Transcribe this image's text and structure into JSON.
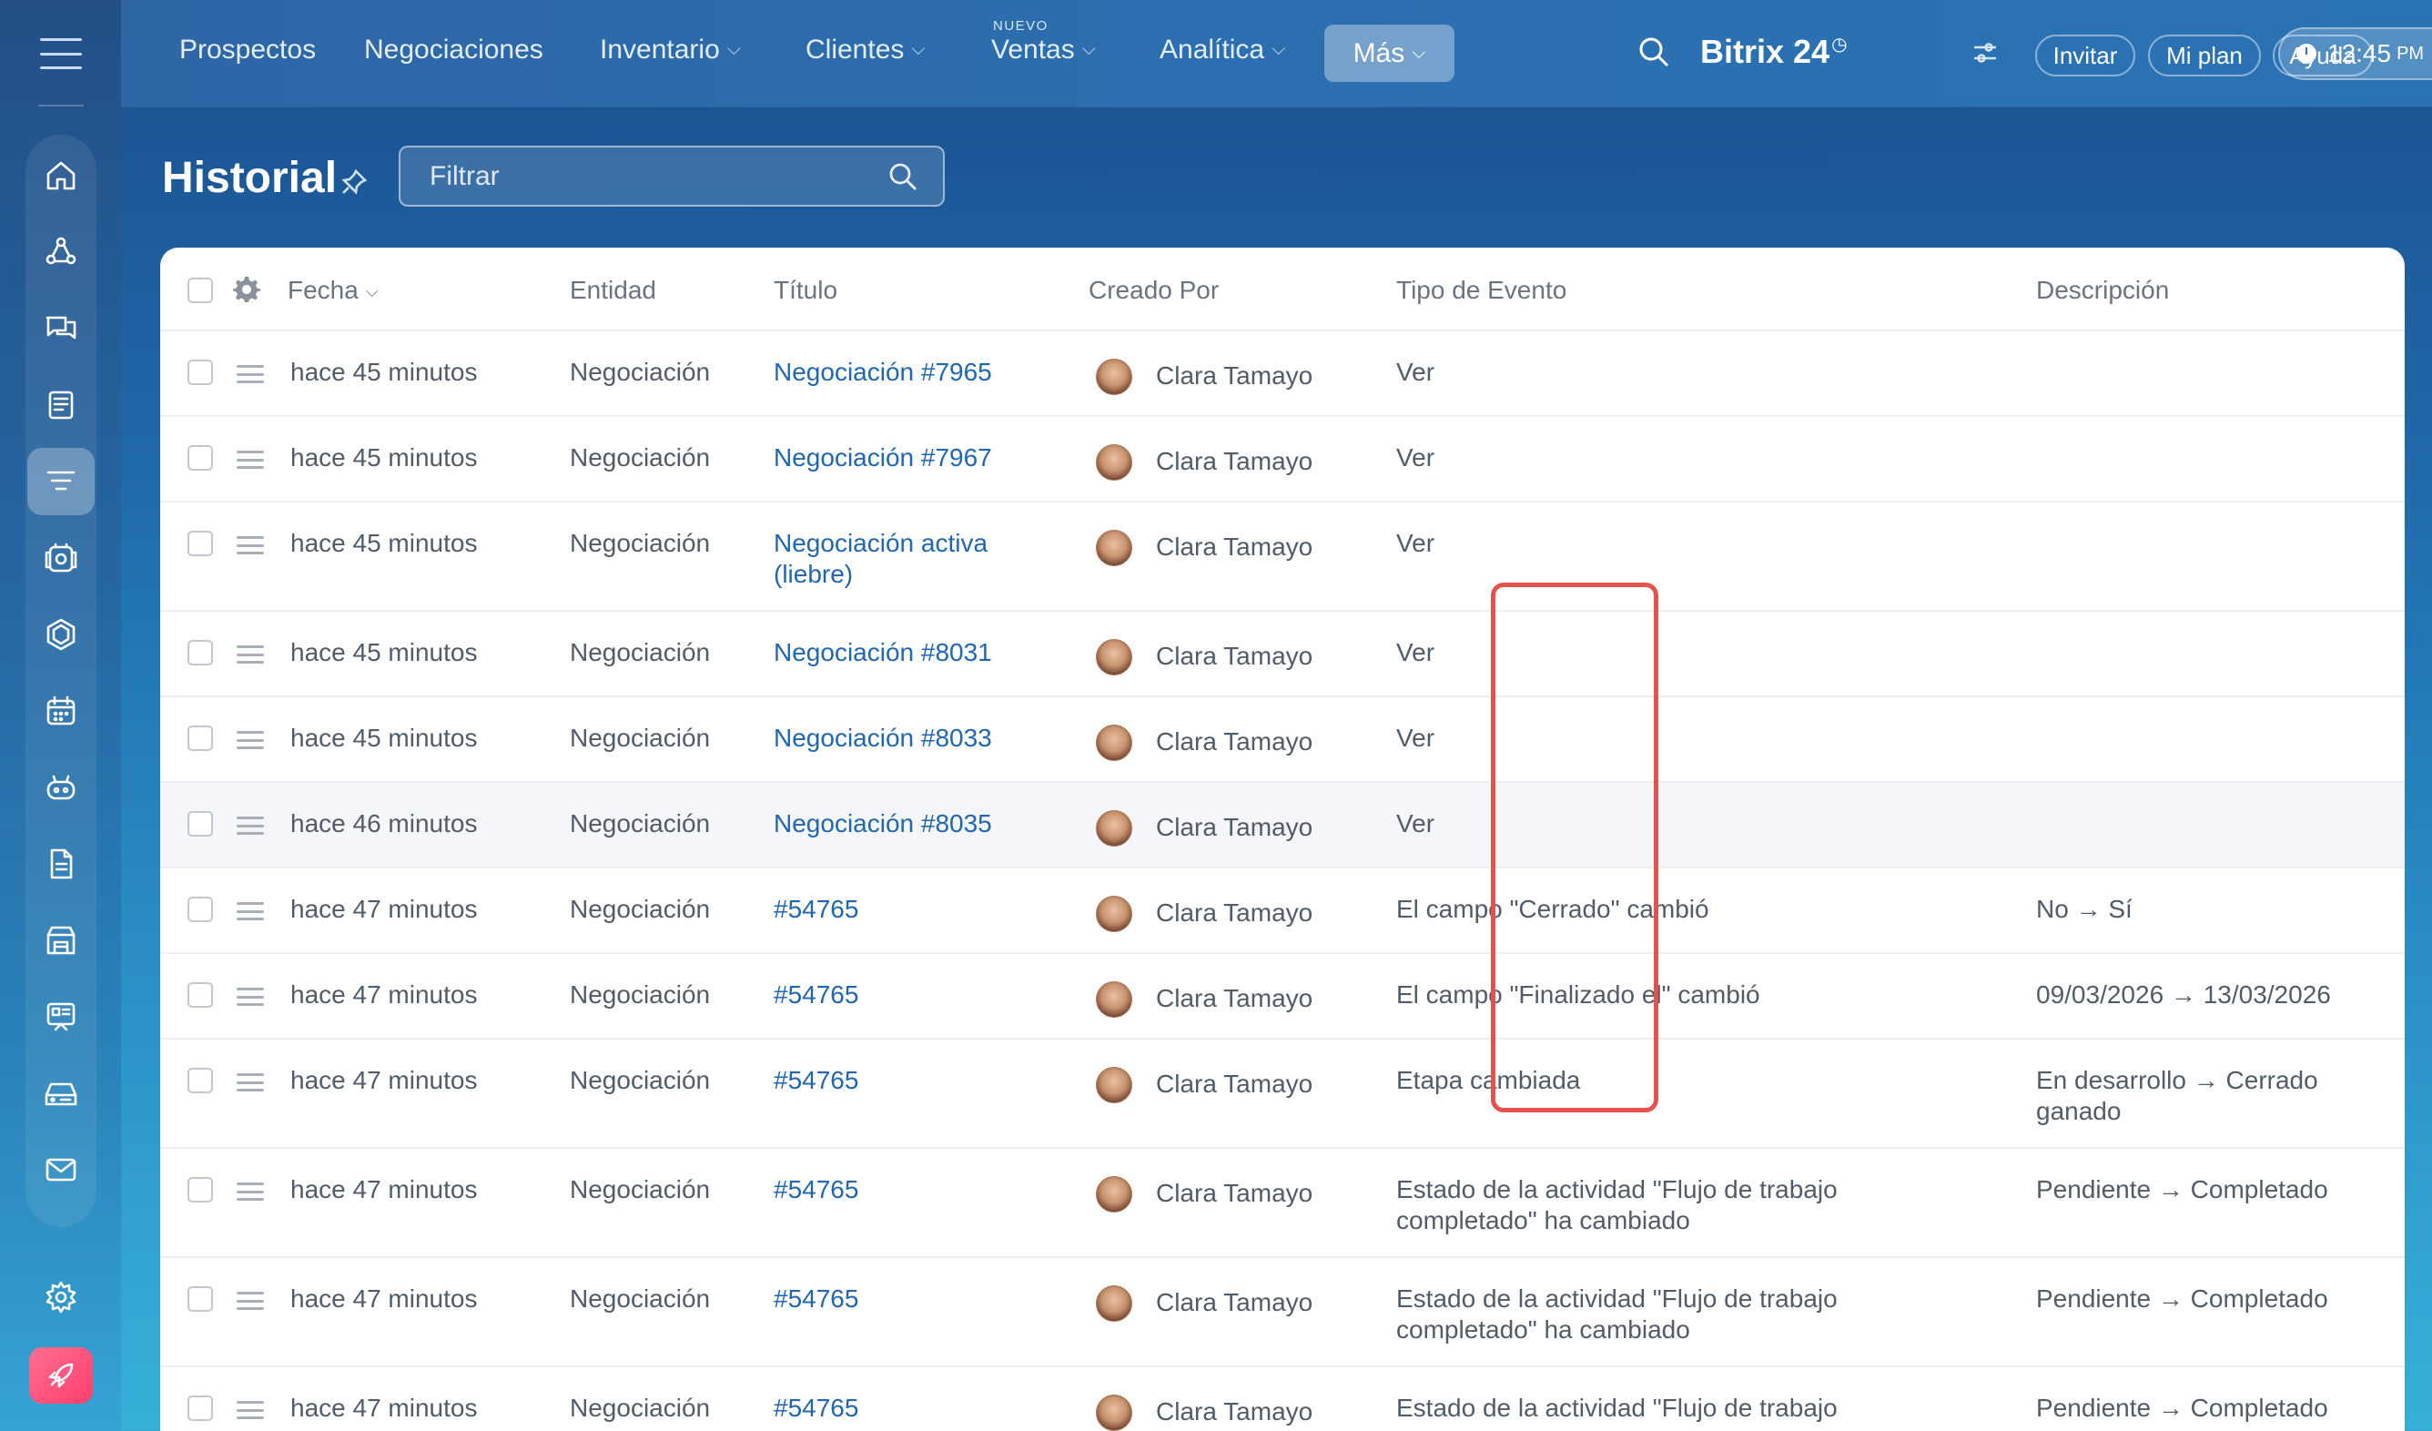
{
  "nav": {
    "items": [
      {
        "label": "Prospectos",
        "dropdown": false
      },
      {
        "label": "Negociaciones",
        "dropdown": false
      },
      {
        "label": "Inventario",
        "dropdown": true
      },
      {
        "label": "Clientes",
        "dropdown": true
      },
      {
        "label": "Ventas",
        "dropdown": true,
        "badge": "NUEVO"
      },
      {
        "label": "Analítica",
        "dropdown": true
      }
    ],
    "more_label": "Más",
    "brand": "Bitrix 24",
    "invite": "Invitar",
    "plan": "Mi plan",
    "help": "Ayuda",
    "time": "12:45",
    "ampm": "PM"
  },
  "sidebar": {
    "icons": [
      "home-icon",
      "flow-icon",
      "chat-icon",
      "feed-icon",
      "crm-funnel-icon",
      "tasks-icon",
      "hexagon-icon",
      "calendar-icon",
      "bot-icon",
      "document-icon",
      "store-icon",
      "kiosk-icon",
      "drive-icon",
      "mail-icon",
      "settings-icon",
      "rocket-icon"
    ],
    "active": "crm-funnel-icon"
  },
  "page": {
    "title": "Historial",
    "filter_placeholder": "Filtrar"
  },
  "table": {
    "headers": {
      "date": "Fecha",
      "entity": "Entidad",
      "title": "Título",
      "created_by": "Creado Por",
      "event_type": "Tipo de Evento",
      "description": "Descripción"
    },
    "rows": [
      {
        "date": "hace 45 minutos",
        "entity": "Negociación",
        "title": "Negociación #7965",
        "title2": "",
        "user": "Clara Tamayo",
        "event": "Ver",
        "event2": "",
        "desc": "",
        "desc2": ""
      },
      {
        "date": "hace 45 minutos",
        "entity": "Negociación",
        "title": "Negociación #7967",
        "title2": "",
        "user": "Clara Tamayo",
        "event": "Ver",
        "event2": "",
        "desc": "",
        "desc2": ""
      },
      {
        "date": "hace 45 minutos",
        "entity": "Negociación",
        "title": "Negociación activa",
        "title2": "(liebre)",
        "user": "Clara Tamayo",
        "event": "Ver",
        "event2": "",
        "desc": "",
        "desc2": ""
      },
      {
        "date": "hace 45 minutos",
        "entity": "Negociación",
        "title": "Negociación #8031",
        "title2": "",
        "user": "Clara Tamayo",
        "event": "Ver",
        "event2": "",
        "desc": "",
        "desc2": ""
      },
      {
        "date": "hace 45 minutos",
        "entity": "Negociación",
        "title": "Negociación #8033",
        "title2": "",
        "user": "Clara Tamayo",
        "event": "Ver",
        "event2": "",
        "desc": "",
        "desc2": ""
      },
      {
        "date": "hace 46 minutos",
        "entity": "Negociación",
        "title": "Negociación #8035",
        "title2": "",
        "user": "Clara Tamayo",
        "event": "Ver",
        "event2": "",
        "desc": "",
        "desc2": ""
      },
      {
        "date": "hace 47 minutos",
        "entity": "Negociación",
        "title": "#54765",
        "title2": "",
        "user": "Clara Tamayo",
        "event": "El campo \"Cerrado\" cambió",
        "event2": "",
        "desc": "No → Sí",
        "desc2": ""
      },
      {
        "date": "hace 47 minutos",
        "entity": "Negociación",
        "title": "#54765",
        "title2": "",
        "user": "Clara Tamayo",
        "event": "El campo \"Finalizado el\" cambió",
        "event2": "",
        "desc": "09/03/2026 → 13/03/2026",
        "desc2": ""
      },
      {
        "date": "hace 47 minutos",
        "entity": "Negociación",
        "title": "#54765",
        "title2": "",
        "user": "Clara Tamayo",
        "event": "Etapa cambiada",
        "event2": "",
        "desc": "En desarrollo → Cerrado",
        "desc2": "ganado"
      },
      {
        "date": "hace 47 minutos",
        "entity": "Negociación",
        "title": "#54765",
        "title2": "",
        "user": "Clara Tamayo",
        "event": "Estado de la actividad \"Flujo de trabajo",
        "event2": "completado\" ha cambiado",
        "desc": "Pendiente → Completado",
        "desc2": ""
      },
      {
        "date": "hace 47 minutos",
        "entity": "Negociación",
        "title": "#54765",
        "title2": "",
        "user": "Clara Tamayo",
        "event": "Estado de la actividad \"Flujo de trabajo",
        "event2": "completado\" ha cambiado",
        "desc": "Pendiente → Completado",
        "desc2": ""
      },
      {
        "date": "hace 47 minutos",
        "entity": "Negociación",
        "title": "#54765",
        "title2": "",
        "user": "Clara Tamayo",
        "event": "Estado de la actividad \"Flujo de trabajo",
        "event2": "",
        "desc": "Pendiente → Completado",
        "desc2": ""
      }
    ]
  }
}
